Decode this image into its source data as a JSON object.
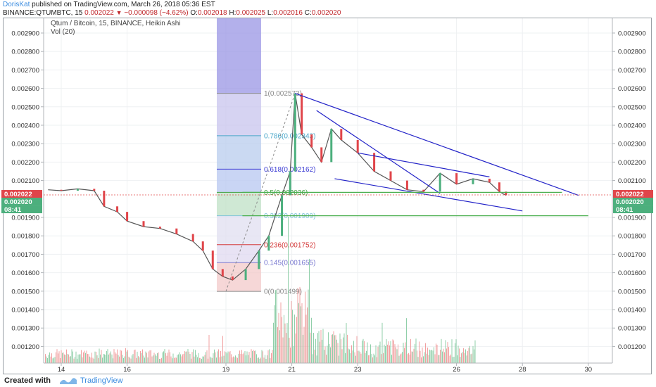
{
  "header": {
    "author": "DorisKat",
    "published_text": "published on TradingView.com, March 26, 2018 05:36 EST",
    "symbol": "BINANCE:QTUMBTC, 15",
    "last": "0.002022",
    "change": "−0.000098 (−4.62%)",
    "ohlc": [
      {
        "label": "O:",
        "value": "0.002018"
      },
      {
        "label": "H:",
        "value": "0.002025"
      },
      {
        "label": "L:",
        "value": "0.002016"
      },
      {
        "label": "C:",
        "value": "0.002020"
      }
    ]
  },
  "chart_data": {
    "type": "candlestick",
    "legend_title": "Qtum / Bitcoin, 15, BINANCE, Heikin Ashi",
    "volume_label": "Vol (20)",
    "x_ticks": [
      "14",
      "16",
      "19",
      "21",
      "23",
      "26",
      "28",
      "30"
    ],
    "y_ticks": [
      "0.002900",
      "0.002800",
      "0.002700",
      "0.002600",
      "0.002500",
      "0.002400",
      "0.002300",
      "0.002200",
      "0.002100",
      "0.001900",
      "0.001800",
      "0.001700",
      "0.001600",
      "0.001500",
      "0.001400",
      "0.001300",
      "0.001200"
    ],
    "y_range": [
      0.00111,
      0.00298
    ],
    "price_path": [
      [
        13.6,
        0.00205
      ],
      [
        14.0,
        0.002045
      ],
      [
        14.5,
        0.002055
      ],
      [
        15.0,
        0.002045
      ],
      [
        15.3,
        0.00196
      ],
      [
        15.7,
        0.00193
      ],
      [
        16.0,
        0.00188
      ],
      [
        16.5,
        0.00185
      ],
      [
        17.0,
        0.00184
      ],
      [
        17.5,
        0.00181
      ],
      [
        18.0,
        0.00177
      ],
      [
        18.3,
        0.00172
      ],
      [
        18.6,
        0.00162
      ],
      [
        18.9,
        0.00158
      ],
      [
        19.2,
        0.00156
      ],
      [
        19.6,
        0.00162
      ],
      [
        20.0,
        0.00172
      ],
      [
        20.3,
        0.0018
      ],
      [
        20.7,
        0.00202
      ],
      [
        20.95,
        0.00215
      ],
      [
        21.1,
        0.002573
      ],
      [
        21.3,
        0.00235
      ],
      [
        21.6,
        0.00228
      ],
      [
        21.9,
        0.0022
      ],
      [
        22.2,
        0.00238
      ],
      [
        22.5,
        0.00232
      ],
      [
        23.0,
        0.00225
      ],
      [
        23.5,
        0.00215
      ],
      [
        24.0,
        0.0021
      ],
      [
        24.5,
        0.00205
      ],
      [
        25.0,
        0.00204
      ],
      [
        25.5,
        0.00214
      ],
      [
        26.0,
        0.00208
      ],
      [
        26.5,
        0.00211
      ],
      [
        27.0,
        0.00209
      ],
      [
        27.3,
        0.00204
      ],
      [
        27.5,
        0.00202
      ]
    ],
    "price_labels": {
      "last": "0.002022",
      "close": "0.002020",
      "countdown": "08:41"
    },
    "fib_levels": [
      {
        "ratio": 1,
        "label": "1(0.002573)",
        "price": 0.002573,
        "color": "#8a8a8a"
      },
      {
        "ratio": 0.786,
        "label": "0.786(0.002343)",
        "price": 0.002343,
        "color": "#4aa7c9"
      },
      {
        "ratio": 0.618,
        "label": "0.618(0.002162)",
        "price": 0.002162,
        "color": "#3b3bd4"
      },
      {
        "ratio": 0.5,
        "label": "0.5(0.002036)",
        "price": 0.002036,
        "color": "#3f9f3f"
      },
      {
        "ratio": 0.382,
        "label": "0.382(0.001909)",
        "price": 0.001909,
        "color": "#7fc3d9"
      },
      {
        "ratio": 0.236,
        "label": "0.236(0.001752)",
        "price": 0.001752,
        "color": "#d43b3b"
      },
      {
        "ratio": 0.145,
        "label": "0.145(0.001655)",
        "price": 0.001655,
        "color": "#7a7ad0"
      },
      {
        "ratio": 0,
        "label": "0(0.001499)",
        "price": 0.001499,
        "color": "#8a8a8a"
      }
    ],
    "colors": {
      "up": "#4caf7d",
      "down": "#e0454a",
      "trendline": "#2323c8",
      "support": "#4caf50",
      "purple_zone": "#9a95e4",
      "axis_text": "#333333"
    }
  },
  "footer": {
    "created_with": "Created with",
    "brand": "TradingView"
  }
}
